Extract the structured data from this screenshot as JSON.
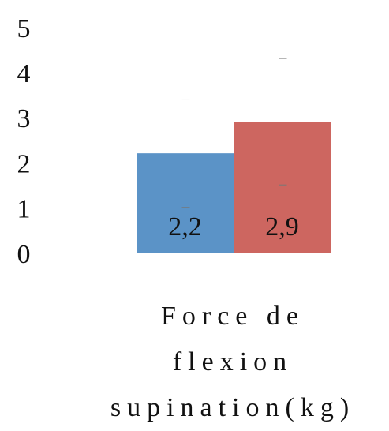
{
  "chart_data": {
    "type": "bar",
    "categories": [
      "Force de flexion supination(kg)"
    ],
    "series": [
      {
        "color": "#5b93c7",
        "values": [
          2.2
        ],
        "value_labels": [
          "2,2"
        ],
        "errors": [
          1.2
        ]
      },
      {
        "color": "#cd6660",
        "values": [
          2.9
        ],
        "value_labels": [
          "2,9"
        ],
        "errors": [
          1.4
        ]
      }
    ],
    "ylim": [
      0,
      5
    ],
    "yticks": [
      0,
      1,
      2,
      3,
      4,
      5
    ]
  }
}
